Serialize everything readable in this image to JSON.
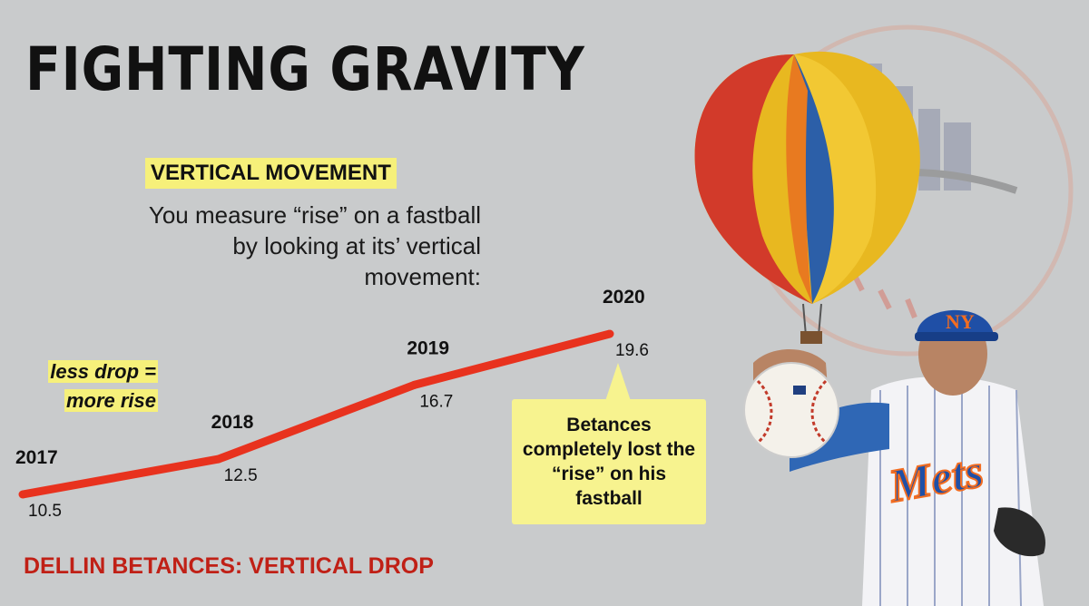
{
  "title": "FIGHTING GRAVITY",
  "section_label": "VERTICAL MOVEMENT",
  "explainer": "You measure “rise” on a fastball by looking at its’ vertical movement:",
  "rise_note": {
    "line1": "less drop =",
    "line2": "more rise"
  },
  "callout": "Betances completely lost the “rise” on his fastball",
  "footer": "DELLIN BETANCES: VERTICAL DROP",
  "colors": {
    "line": "#e8321e",
    "highlight": "#f6f07a",
    "footer": "#c02016",
    "background": "#c9cbcc"
  },
  "icons": [
    "hot-air-balloon-icon",
    "mets-cap-icon",
    "baseball-icon"
  ],
  "chart_data": {
    "type": "line",
    "title": "DELLIN BETANCES: VERTICAL DROP",
    "x": [
      "2017",
      "2018",
      "2019",
      "2020"
    ],
    "series": [
      {
        "values": [
          10.5,
          12.5,
          16.7,
          19.6
        ]
      }
    ],
    "ylim": [
      9,
      21
    ],
    "grid": false,
    "legend": "none"
  }
}
